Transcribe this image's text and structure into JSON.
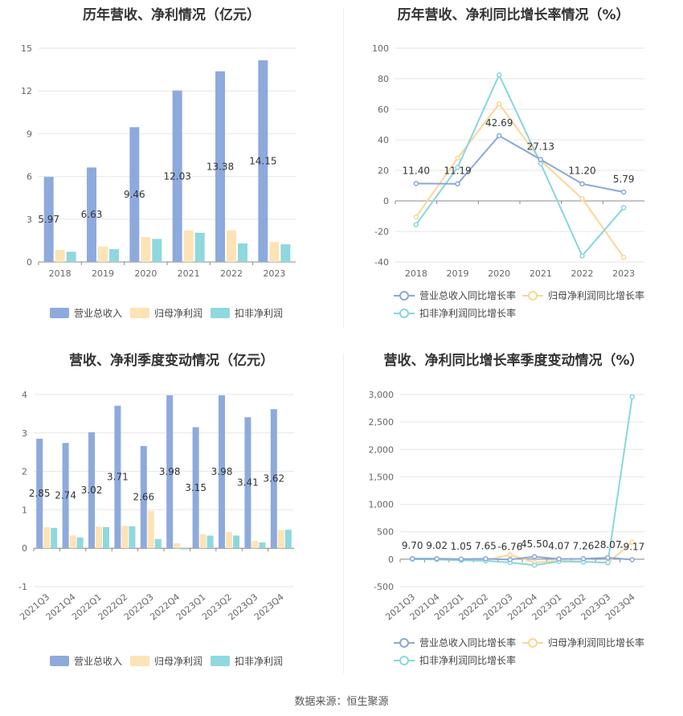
{
  "source": "数据来源：恒生聚源",
  "colors": {
    "revenue": "#8eaadc",
    "net": "#fde3b5",
    "deducted": "#8fd8de",
    "revenue_line": "#8aa7d8",
    "net_line": "#fbd597",
    "deducted_line": "#88d6dd"
  },
  "chart_data": [
    {
      "type": "bar",
      "title": "历年营收、净利情况（亿元）",
      "categories": [
        "2018",
        "2019",
        "2020",
        "2021",
        "2022",
        "2023"
      ],
      "series": [
        {
          "name": "营业总收入",
          "values": [
            5.97,
            6.63,
            9.46,
            12.03,
            13.38,
            14.15
          ]
        },
        {
          "name": "归母净利润",
          "values": [
            0.85,
            1.08,
            1.75,
            2.21,
            2.22,
            1.4
          ]
        },
        {
          "name": "扣非净利润",
          "values": [
            0.72,
            0.9,
            1.62,
            2.05,
            1.3,
            1.24
          ]
        }
      ],
      "data_labels": [
        "5.97",
        "6.63",
        "9.46",
        "12.03",
        "13.38",
        "14.15"
      ],
      "ylim": [
        0,
        15
      ],
      "yticks": [
        "0",
        "3",
        "6",
        "9",
        "12",
        "15"
      ],
      "grid": true,
      "legend_position": "bottom"
    },
    {
      "type": "line",
      "title": "历年营收、净利同比增长率情况（%）",
      "categories": [
        "2018",
        "2019",
        "2020",
        "2021",
        "2022",
        "2023"
      ],
      "series": [
        {
          "name": "营业总收入同比增长率",
          "values": [
            11.4,
            11.19,
            42.69,
            27.13,
            11.2,
            5.79
          ]
        },
        {
          "name": "归母净利润同比增长率",
          "values": [
            -10.5,
            28.0,
            63.5,
            26.5,
            1.5,
            -37.0
          ]
        },
        {
          "name": "扣非净利润同比增长率",
          "values": [
            -15.5,
            22.0,
            82.5,
            24.5,
            -36.0,
            -4.5
          ]
        }
      ],
      "data_labels": [
        "11.40",
        "11.19",
        "42.69",
        "27.13",
        "11.20",
        "5.79"
      ],
      "ylim": [
        -40,
        100
      ],
      "yticks": [
        "-40",
        "-20",
        "0",
        "20",
        "40",
        "60",
        "80",
        "100"
      ],
      "grid": true,
      "legend_position": "bottom"
    },
    {
      "type": "bar",
      "title": "营收、净利季度变动情况（亿元）",
      "categories": [
        "2021Q3",
        "2021Q4",
        "2022Q1",
        "2022Q2",
        "2022Q3",
        "2022Q4",
        "2023Q1",
        "2023Q2",
        "2023Q3",
        "2023Q4"
      ],
      "series": [
        {
          "name": "营业总收入",
          "values": [
            2.85,
            2.74,
            3.02,
            3.71,
            2.66,
            3.98,
            3.15,
            3.98,
            3.41,
            3.62
          ]
        },
        {
          "name": "归母净利润",
          "values": [
            0.55,
            0.33,
            0.56,
            0.58,
            0.97,
            0.13,
            0.37,
            0.42,
            0.19,
            0.47
          ]
        },
        {
          "name": "扣非净利润",
          "values": [
            0.53,
            0.28,
            0.55,
            0.57,
            0.24,
            -0.03,
            0.33,
            0.33,
            0.15,
            0.48
          ]
        }
      ],
      "data_labels": [
        "2.85",
        "2.74",
        "3.02",
        "3.71",
        "2.66",
        "3.98",
        "3.15",
        "3.98",
        "3.41",
        "3.62"
      ],
      "ylim": [
        -1,
        4
      ],
      "yticks": [
        "-1",
        "0",
        "1",
        "2",
        "3",
        "4"
      ],
      "grid": true,
      "legend_position": "bottom"
    },
    {
      "type": "line",
      "title": "营收、净利同比增长率季度变动情况（%）",
      "categories": [
        "2021Q3",
        "2021Q4",
        "2022Q1",
        "2022Q2",
        "2022Q3",
        "2022Q4",
        "2023Q1",
        "2023Q2",
        "2023Q3",
        "2023Q4"
      ],
      "series": [
        {
          "name": "营业总收入同比增长率",
          "values": [
            9.7,
            9.02,
            1.05,
            7.65,
            -6.76,
            45.5,
            4.07,
            7.26,
            28.07,
            -9.17
          ]
        },
        {
          "name": "归母净利润同比增长率",
          "values": [
            5,
            0,
            -10,
            -20,
            80,
            -60,
            -30,
            -40,
            -70,
            310
          ]
        },
        {
          "name": "扣非净利润同比增长率",
          "values": [
            0,
            -5,
            -20,
            -30,
            -60,
            -110,
            -40,
            -50,
            -60,
            2960
          ]
        }
      ],
      "data_labels": [
        "9.70",
        "9.02",
        "1.05",
        "7.65",
        "-6.76",
        "45.50",
        "4.07",
        "7.26",
        "28.07",
        "-9.17"
      ],
      "ylim": [
        -500,
        3000
      ],
      "yticks": [
        "-500",
        "0",
        "500",
        "1,000",
        "1,500",
        "2,000",
        "2,500",
        "3,000"
      ],
      "grid": true,
      "legend_position": "bottom"
    }
  ]
}
